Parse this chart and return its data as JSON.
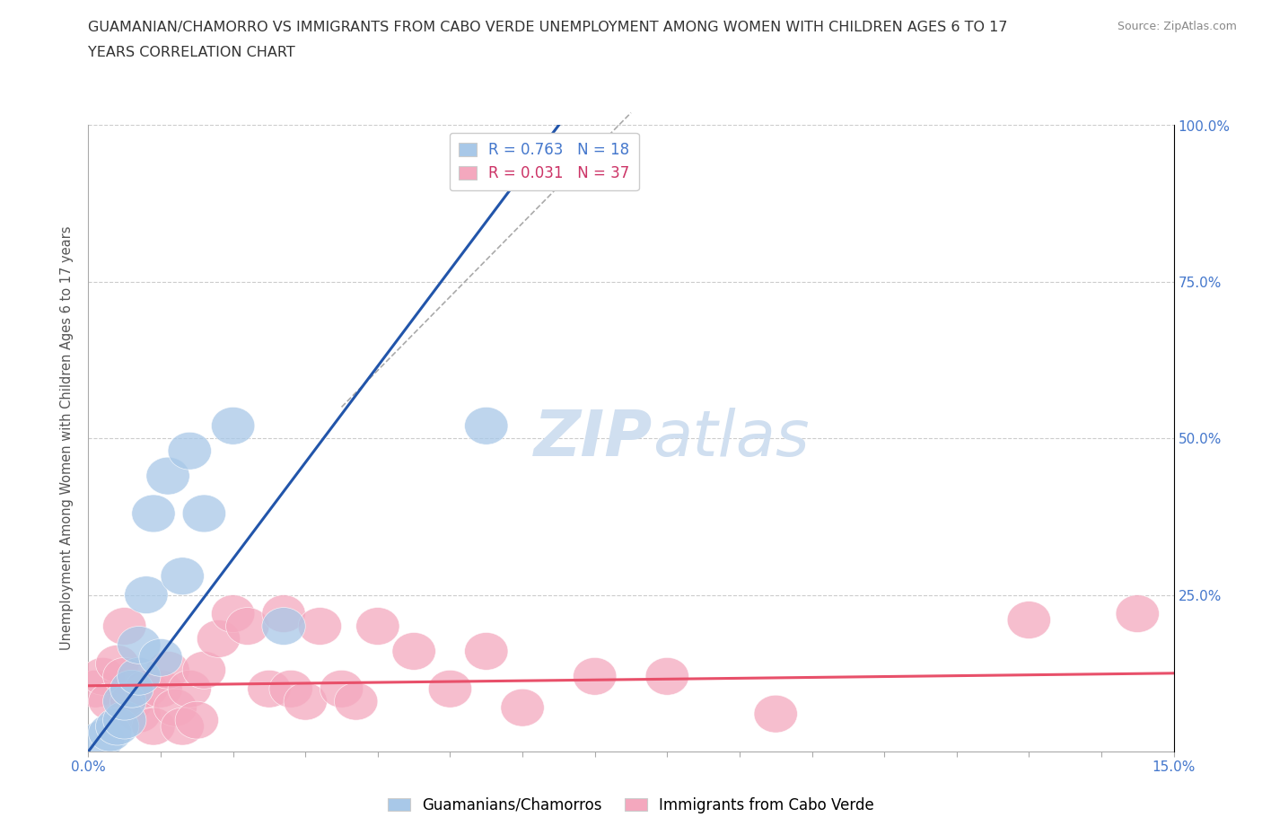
{
  "title_line1": "GUAMANIAN/CHAMORRO VS IMMIGRANTS FROM CABO VERDE UNEMPLOYMENT AMONG WOMEN WITH CHILDREN AGES 6 TO 17",
  "title_line2": "YEARS CORRELATION CHART",
  "source_text": "Source: ZipAtlas.com",
  "ylabel": "Unemployment Among Women with Children Ages 6 to 17 years",
  "xlim": [
    0,
    0.15
  ],
  "ylim": [
    0,
    1.0
  ],
  "ytick_positions": [
    0.0,
    0.25,
    0.5,
    0.75,
    1.0
  ],
  "xtick_positions": [
    0.0,
    0.01,
    0.02,
    0.03,
    0.04,
    0.05,
    0.06,
    0.07,
    0.08,
    0.09,
    0.1,
    0.11,
    0.12,
    0.13,
    0.14,
    0.15
  ],
  "blue_label": "Guamanians/Chamorros",
  "pink_label": "Immigrants from Cabo Verde",
  "blue_R": 0.763,
  "blue_N": 18,
  "pink_R": 0.031,
  "pink_N": 37,
  "blue_color": "#a8c8e8",
  "pink_color": "#f4a8be",
  "blue_line_color": "#2255aa",
  "pink_line_color": "#e8506a",
  "background_color": "#ffffff",
  "watermark_color": "#d0dff0",
  "blue_scatter_x": [
    0.002,
    0.003,
    0.004,
    0.005,
    0.005,
    0.006,
    0.007,
    0.007,
    0.008,
    0.009,
    0.01,
    0.011,
    0.013,
    0.014,
    0.016,
    0.02,
    0.027,
    0.055
  ],
  "blue_scatter_y": [
    0.02,
    0.03,
    0.04,
    0.05,
    0.08,
    0.1,
    0.12,
    0.17,
    0.25,
    0.38,
    0.15,
    0.44,
    0.28,
    0.48,
    0.38,
    0.52,
    0.2,
    0.52
  ],
  "pink_scatter_x": [
    0.001,
    0.002,
    0.003,
    0.004,
    0.005,
    0.005,
    0.006,
    0.007,
    0.008,
    0.009,
    0.01,
    0.011,
    0.012,
    0.013,
    0.014,
    0.015,
    0.016,
    0.018,
    0.02,
    0.022,
    0.025,
    0.027,
    0.028,
    0.03,
    0.032,
    0.035,
    0.037,
    0.04,
    0.045,
    0.05,
    0.055,
    0.06,
    0.07,
    0.08,
    0.095,
    0.13,
    0.145
  ],
  "pink_scatter_y": [
    0.1,
    0.12,
    0.08,
    0.14,
    0.2,
    0.12,
    0.08,
    0.06,
    0.1,
    0.04,
    0.1,
    0.13,
    0.07,
    0.04,
    0.1,
    0.05,
    0.13,
    0.18,
    0.22,
    0.2,
    0.1,
    0.22,
    0.1,
    0.08,
    0.2,
    0.1,
    0.08,
    0.2,
    0.16,
    0.1,
    0.16,
    0.07,
    0.12,
    0.12,
    0.06,
    0.21,
    0.22
  ],
  "blue_line_x": [
    0.0,
    0.065
  ],
  "blue_line_y": [
    0.0,
    1.0
  ],
  "pink_line_x": [
    0.0,
    0.15
  ],
  "pink_line_y": [
    0.105,
    0.125
  ]
}
